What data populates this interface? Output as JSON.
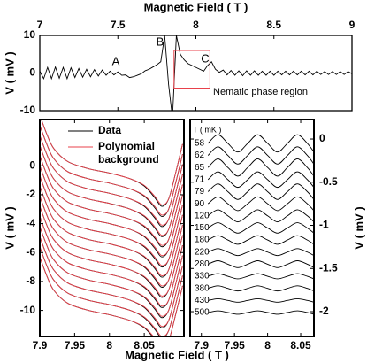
{
  "chart_data": [
    {
      "type": "line",
      "xlabel": "Magnetic Field ( T )",
      "ylabel": "V ( mV )",
      "xaxis": "top",
      "yaxis": "left",
      "color": "black",
      "x": [
        7,
        7.025,
        7.05,
        7.075,
        7.1,
        7.125,
        7.15,
        7.175,
        7.2,
        7.225,
        7.25,
        7.275,
        7.3,
        7.325,
        7.35,
        7.375,
        7.4,
        7.425,
        7.45,
        7.475,
        7.5,
        7.525,
        7.55,
        7.575,
        7.6,
        7.625,
        7.65,
        7.675,
        7.7,
        7.725,
        7.75,
        7.775,
        7.8,
        7.825,
        7.85,
        7.875,
        7.9,
        7.925,
        7.95,
        7.975,
        8,
        8.025,
        8.05,
        8.075,
        8.1,
        8.125,
        8.15,
        8.175,
        8.2,
        8.225,
        8.25,
        8.275,
        8.3,
        8.325,
        8.35,
        8.375,
        8.4,
        8.425,
        8.45,
        8.475,
        8.5,
        8.525,
        8.55,
        8.575,
        8.6,
        8.625,
        8.65,
        8.675,
        8.7,
        8.725,
        8.75,
        8.775,
        8.8,
        8.825,
        8.85,
        8.875,
        8.9,
        8.925,
        8.95,
        8.975,
        9
      ],
      "values": [
        0.5,
        -1.5,
        1.5,
        -1.5,
        1.6,
        -1.4,
        1.5,
        -1.5,
        1.4,
        -1.2,
        1.2,
        -1.1,
        1,
        -1,
        0.9,
        -0.8,
        0.8,
        -0.6,
        0.5,
        -0.5,
        0.3,
        -0.6,
        -0.5,
        -1.2,
        -1,
        -0.6,
        -0.2,
        0.6,
        1,
        1.6,
        2.2,
        3,
        10,
        -3,
        -12,
        10,
        5,
        3.5,
        2.5,
        2,
        1.5,
        1,
        0.5,
        2,
        3,
        1,
        0.2,
        0.8,
        -0.5,
        0.7,
        -0.6,
        0.6,
        -0.7,
        0.6,
        -0.6,
        0.6,
        -0.6,
        0.5,
        -0.6,
        0.5,
        -0.6,
        0.5,
        -0.5,
        0.5,
        -0.5,
        0.5,
        -0.5,
        0.5,
        -0.5,
        0.5,
        -0.5,
        0.5,
        -0.4,
        0.4,
        -0.4,
        0.4,
        -0.4,
        0.4,
        -0.4,
        0.4,
        -0.2
      ],
      "xlim": [
        7,
        9
      ],
      "xticks": [
        7,
        7.5,
        8,
        8.5,
        9
      ],
      "ylim": [
        -10,
        10
      ],
      "yticks": [
        -10,
        0,
        10
      ],
      "annotations": [
        "A",
        "B",
        "C",
        "Nematic phase region"
      ],
      "highlight": {
        "x": [
          7.86,
          8.09
        ],
        "y": [
          -4,
          6
        ],
        "color": "#e8414b"
      }
    },
    {
      "type": "line",
      "xlabel": "Magnetic Field ( T )",
      "ylabel": "V ( mV )",
      "xaxis": "bottom",
      "yaxis": "left",
      "x": [
        7.9,
        7.91,
        7.92,
        7.94,
        7.97,
        8,
        8.03,
        8.05,
        8.065,
        8.075,
        8.085,
        8.095,
        8.105
      ],
      "series": [
        {
          "name": "Data",
          "color": "black",
          "curves": [
            [
              3.5,
              2.2,
              1.2,
              0.3,
              -0.2,
              -0.5,
              -0.9,
              -1.4,
              -2.2,
              -2.8,
              -2.3,
              -0.5,
              1.5
            ],
            [
              2.8,
              1.5,
              0.5,
              -0.4,
              -0.9,
              -1.2,
              -1.6,
              -2.1,
              -2.9,
              -3.5,
              -3,
              -1.2,
              0.8
            ],
            [
              2.1,
              0.8,
              -0.2,
              -1.1,
              -1.6,
              -1.9,
              -2.3,
              -2.8,
              -3.6,
              -4.2,
              -3.7,
              -1.9,
              0.1
            ],
            [
              1.4,
              0.1,
              -0.9,
              -1.8,
              -2.3,
              -2.6,
              -3,
              -3.5,
              -4.3,
              -4.9,
              -4.4,
              -2.6,
              -0.6
            ],
            [
              0.7,
              -0.6,
              -1.6,
              -2.5,
              -3,
              -3.3,
              -3.7,
              -4.2,
              -5,
              -5.6,
              -5.1,
              -3.3,
              -1.3
            ],
            [
              0,
              -1.3,
              -2.3,
              -3.2,
              -3.7,
              -4,
              -4.4,
              -4.9,
              -5.7,
              -6.3,
              -5.8,
              -4,
              -2
            ],
            [
              -0.7,
              -2,
              -3,
              -3.9,
              -4.4,
              -4.7,
              -5.1,
              -5.6,
              -6.4,
              -7,
              -6.5,
              -4.7,
              -2.7
            ],
            [
              -1.4,
              -2.7,
              -3.7,
              -4.6,
              -5.1,
              -5.4,
              -5.8,
              -6.3,
              -7.1,
              -7.7,
              -7.2,
              -5.4,
              -3.4
            ],
            [
              -2.1,
              -3.4,
              -4.4,
              -5.3,
              -5.8,
              -6.1,
              -6.5,
              -7,
              -7.8,
              -8.4,
              -7.9,
              -6.1,
              -4.1
            ],
            [
              -2.8,
              -4.1,
              -5.1,
              -6,
              -6.5,
              -6.8,
              -7.2,
              -7.7,
              -8.5,
              -9.1,
              -8.6,
              -6.8,
              -4.8
            ],
            [
              -3.5,
              -4.8,
              -5.8,
              -6.7,
              -7.2,
              -7.5,
              -7.9,
              -8.4,
              -9.2,
              -9.8,
              -9.3,
              -7.5,
              -5.5
            ],
            [
              -4.2,
              -5.5,
              -6.5,
              -7.4,
              -7.9,
              -8.2,
              -8.6,
              -9.1,
              -9.9,
              -10.5,
              -10,
              -8.2,
              -6.2
            ],
            [
              -4.9,
              -6.2,
              -7.2,
              -8.1,
              -8.6,
              -8.9,
              -9.3,
              -9.8,
              -10.6,
              -11.2,
              -10.7,
              -8.9,
              -6.9
            ],
            [
              -5.6,
              -6.9,
              -7.9,
              -8.8,
              -9.3,
              -9.6,
              -10,
              -10.5,
              -11.3,
              -11.9,
              -11.4,
              -9.6,
              -7.6
            ],
            [
              -6.3,
              -7.6,
              -8.6,
              -9.5,
              -10,
              -10.3,
              -10.7,
              -11.2,
              -12,
              -12.6,
              -12.1,
              -10.3,
              -8.3
            ]
          ]
        },
        {
          "name": "Polynomial background",
          "color": "#e8414b",
          "curves": [
            [
              3.5,
              2.2,
              1.2,
              0.3,
              -0.2,
              -0.5,
              -0.9,
              -1.35,
              -2.1,
              -2.7,
              -2.3,
              -0.5,
              1.5
            ],
            [
              2.8,
              1.5,
              0.5,
              -0.4,
              -0.9,
              -1.2,
              -1.6,
              -2.05,
              -2.8,
              -3.4,
              -3,
              -1.2,
              0.8
            ],
            [
              2.1,
              0.8,
              -0.2,
              -1.1,
              -1.6,
              -1.9,
              -2.3,
              -2.75,
              -3.5,
              -4.1,
              -3.7,
              -1.9,
              0.1
            ],
            [
              1.4,
              0.1,
              -0.9,
              -1.8,
              -2.3,
              -2.6,
              -3,
              -3.45,
              -4.2,
              -4.8,
              -4.4,
              -2.6,
              -0.6
            ],
            [
              0.7,
              -0.6,
              -1.6,
              -2.5,
              -3,
              -3.3,
              -3.7,
              -4.15,
              -4.9,
              -5.5,
              -5.1,
              -3.3,
              -1.3
            ],
            [
              0,
              -1.3,
              -2.3,
              -3.2,
              -3.7,
              -4,
              -4.4,
              -4.85,
              -5.6,
              -6.2,
              -5.8,
              -4,
              -2
            ],
            [
              -0.7,
              -2,
              -3,
              -3.9,
              -4.4,
              -4.7,
              -5.1,
              -5.55,
              -6.3,
              -6.9,
              -6.5,
              -4.7,
              -2.7
            ],
            [
              -1.4,
              -2.7,
              -3.7,
              -4.6,
              -5.1,
              -5.4,
              -5.8,
              -6.25,
              -7,
              -7.6,
              -7.2,
              -5.4,
              -3.4
            ],
            [
              -2.1,
              -3.4,
              -4.4,
              -5.3,
              -5.8,
              -6.1,
              -6.5,
              -6.95,
              -7.7,
              -8.3,
              -7.9,
              -6.1,
              -4.1
            ],
            [
              -2.8,
              -4.1,
              -5.1,
              -6,
              -6.5,
              -6.8,
              -7.2,
              -7.65,
              -8.4,
              -9,
              -8.6,
              -6.8,
              -4.8
            ],
            [
              -3.5,
              -4.8,
              -5.8,
              -6.7,
              -7.2,
              -7.5,
              -7.9,
              -8.35,
              -9.1,
              -9.7,
              -9.3,
              -7.5,
              -5.5
            ],
            [
              -4.2,
              -5.5,
              -6.5,
              -7.4,
              -7.9,
              -8.2,
              -8.6,
              -9.05,
              -9.8,
              -10.4,
              -10,
              -8.2,
              -6.2
            ],
            [
              -4.9,
              -6.2,
              -7.2,
              -8.1,
              -8.6,
              -8.9,
              -9.3,
              -9.75,
              -10.5,
              -11.1,
              -10.7,
              -8.9,
              -6.9
            ],
            [
              -5.6,
              -6.9,
              -7.9,
              -8.8,
              -9.3,
              -9.6,
              -10,
              -10.45,
              -11.2,
              -11.8,
              -11.4,
              -9.6,
              -7.6
            ],
            [
              -6.3,
              -7.6,
              -8.6,
              -9.5,
              -10,
              -10.3,
              -10.7,
              -11.15,
              -11.9,
              -12.5,
              -12.1,
              -10.3,
              -8.3
            ]
          ]
        }
      ],
      "xlim": [
        7.9,
        8.107
      ],
      "xticks": [
        7.9,
        7.95,
        8,
        8.05
      ],
      "ylim": [
        -11.8,
        3.2
      ],
      "yticks": [
        0,
        -2,
        -4,
        -6,
        -8,
        -10
      ]
    },
    {
      "type": "line",
      "ylabel": "V ( mV )",
      "legend_title": "T ( mK )",
      "xaxis": "bottom",
      "yaxis": "right",
      "color": "black",
      "x": [
        7.91,
        7.925,
        7.94,
        7.955,
        7.97,
        7.985,
        8,
        8.015,
        8.03,
        8.045,
        8.06,
        8.07
      ],
      "series": [
        {
          "name": "58",
          "values": [
            -0.05,
            0.05,
            -0.05,
            -0.15,
            -0.05,
            0.05,
            -0.05,
            -0.15,
            -0.05,
            0.05,
            -0.05,
            -0.15
          ]
        },
        {
          "name": "62",
          "values": [
            -0.19,
            -0.09,
            -0.19,
            -0.29,
            -0.19,
            -0.09,
            -0.19,
            -0.29,
            -0.19,
            -0.09,
            -0.19,
            -0.29
          ]
        },
        {
          "name": "65",
          "values": [
            -0.33,
            -0.23,
            -0.33,
            -0.43,
            -0.33,
            -0.23,
            -0.33,
            -0.43,
            -0.33,
            -0.23,
            -0.33,
            -0.43
          ]
        },
        {
          "name": "71",
          "values": [
            -0.47,
            -0.38,
            -0.47,
            -0.56,
            -0.47,
            -0.38,
            -0.47,
            -0.56,
            -0.47,
            -0.38,
            -0.47,
            -0.56
          ]
        },
        {
          "name": "79",
          "values": [
            -0.61,
            -0.52,
            -0.61,
            -0.7,
            -0.61,
            -0.52,
            -0.61,
            -0.7,
            -0.61,
            -0.52,
            -0.61,
            -0.7
          ]
        },
        {
          "name": "90",
          "values": [
            -0.75,
            -0.67,
            -0.75,
            -0.83,
            -0.75,
            -0.67,
            -0.75,
            -0.83,
            -0.75,
            -0.67,
            -0.75,
            -0.83
          ]
        },
        {
          "name": "120",
          "values": [
            -0.89,
            -0.82,
            -0.89,
            -0.96,
            -0.89,
            -0.82,
            -0.89,
            -0.96,
            -0.89,
            -0.82,
            -0.89,
            -0.96
          ]
        },
        {
          "name": "150",
          "values": [
            -1.03,
            -0.97,
            -1.03,
            -1.09,
            -1.03,
            -0.97,
            -1.03,
            -1.09,
            -1.03,
            -0.97,
            -1.03,
            -1.09
          ]
        },
        {
          "name": "180",
          "values": [
            -1.17,
            -1.12,
            -1.17,
            -1.22,
            -1.17,
            -1.12,
            -1.17,
            -1.22,
            -1.17,
            -1.12,
            -1.17,
            -1.22
          ]
        },
        {
          "name": "220",
          "values": [
            -1.31,
            -1.27,
            -1.31,
            -1.35,
            -1.31,
            -1.27,
            -1.31,
            -1.35,
            -1.31,
            -1.27,
            -1.31,
            -1.35
          ]
        },
        {
          "name": "280",
          "values": [
            -1.45,
            -1.41,
            -1.45,
            -1.49,
            -1.45,
            -1.41,
            -1.45,
            -1.49,
            -1.45,
            -1.41,
            -1.45,
            -1.49
          ]
        },
        {
          "name": "330",
          "values": [
            -1.59,
            -1.56,
            -1.59,
            -1.62,
            -1.59,
            -1.56,
            -1.59,
            -1.62,
            -1.59,
            -1.56,
            -1.59,
            -1.62
          ]
        },
        {
          "name": "380",
          "values": [
            -1.73,
            -1.7,
            -1.73,
            -1.76,
            -1.73,
            -1.7,
            -1.73,
            -1.76,
            -1.73,
            -1.7,
            -1.73,
            -1.76
          ]
        },
        {
          "name": "430",
          "values": [
            -1.87,
            -1.85,
            -1.87,
            -1.89,
            -1.87,
            -1.85,
            -1.87,
            -1.89,
            -1.87,
            -1.85,
            -1.87,
            -1.89
          ]
        },
        {
          "name": "500",
          "values": [
            -2.01,
            -1.99,
            -2.01,
            -2.03,
            -2.01,
            -1.99,
            -2.01,
            -2.03,
            -2.01,
            -1.99,
            -2.01,
            -2.03
          ]
        }
      ],
      "xlim": [
        7.883,
        8.07
      ],
      "xticks": [
        7.9,
        7.95,
        8,
        8.05
      ],
      "ylim": [
        -2.287,
        0.226
      ],
      "yticks": [
        0,
        -0.5,
        -1,
        -1.5,
        -2
      ]
    }
  ]
}
